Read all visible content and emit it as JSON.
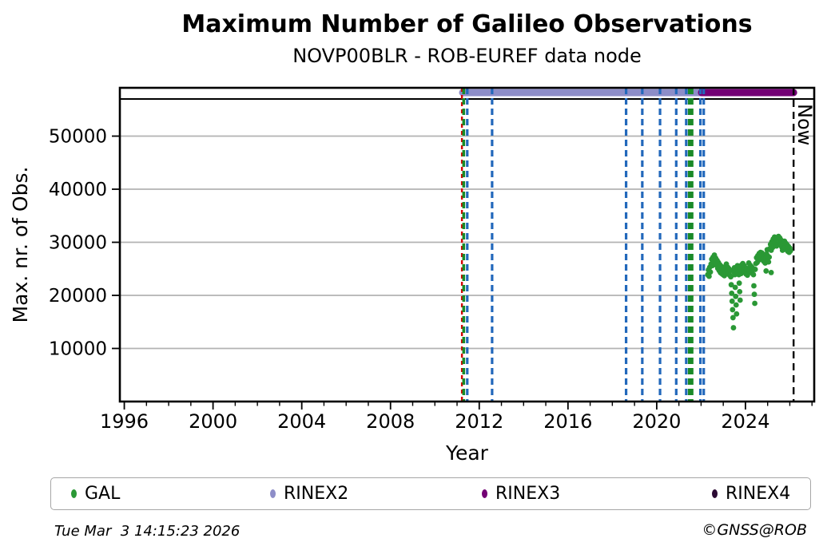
{
  "header": {
    "title": "Maximum Number of Galileo Observations",
    "subtitle": "NOVP00BLR - ROB-EUREF data node"
  },
  "footer": {
    "timestamp": "Tue Mar  3 14:15:23 2026",
    "credit": "©GNSS@ROB"
  },
  "legend": {
    "items": [
      {
        "label": "GAL",
        "color": "#2a9835"
      },
      {
        "label": "RINEX2",
        "color": "#8d8dc8"
      },
      {
        "label": "RINEX3",
        "color": "#730074"
      },
      {
        "label": "RINEX4",
        "color": "#2b0a33"
      }
    ]
  },
  "chart_data": {
    "type": "scatter",
    "title": "Maximum Number of Galileo Observations",
    "subtitle": "NOVP00BLR - ROB-EUREF data node",
    "xlabel": "Year",
    "ylabel": "Max. nr. of Obs.",
    "xlim": [
      1995.8,
      2027.1
    ],
    "ylim": [
      0,
      59100
    ],
    "xticks_major": [
      1996,
      2000,
      2004,
      2008,
      2012,
      2016,
      2020,
      2024
    ],
    "xtick_minor_step": 1,
    "yticks_major": [
      10000,
      20000,
      30000,
      40000,
      50000
    ],
    "grid": {
      "horizontal": true,
      "vertical": false,
      "color": "#b3b3b3"
    },
    "frame_color": "#000000",
    "reference_line": {
      "value": 57000,
      "color": "#000000"
    },
    "availability_bars": [
      {
        "name": "RINEX2",
        "start": 2011.25,
        "end": 2022.02,
        "y": 58200,
        "color": "#8d8dc8"
      },
      {
        "name": "RINEX3",
        "start": 2022.02,
        "end": 2026.17,
        "y": 58200,
        "color": "#730074"
      }
    ],
    "event_lines": [
      {
        "year": 2011.22,
        "color": "#d40000",
        "width": 2.4,
        "dash": "5 4"
      },
      {
        "year": 2011.3,
        "color": "#1a8a28",
        "width": 3.6,
        "dash": "8 5"
      },
      {
        "year": 2011.46,
        "color": "#2268bb",
        "width": 3.2,
        "dash": "8 5"
      },
      {
        "year": 2012.58,
        "color": "#2268bb",
        "width": 3.2,
        "dash": "8 5"
      },
      {
        "year": 2018.62,
        "color": "#2268bb",
        "width": 3.2,
        "dash": "8 5"
      },
      {
        "year": 2019.35,
        "color": "#2268bb",
        "width": 3.2,
        "dash": "8 5"
      },
      {
        "year": 2020.15,
        "color": "#2268bb",
        "width": 3.2,
        "dash": "8 5"
      },
      {
        "year": 2020.88,
        "color": "#2268bb",
        "width": 3.2,
        "dash": "8 5"
      },
      {
        "year": 2021.33,
        "color": "#2268bb",
        "width": 3.2,
        "dash": "8 5"
      },
      {
        "year": 2021.47,
        "color": "#1a8a28",
        "width": 3.6,
        "dash": "8 5"
      },
      {
        "year": 2021.59,
        "color": "#1a8a28",
        "width": 3.6,
        "dash": "8 5"
      },
      {
        "year": 2021.97,
        "color": "#2268bb",
        "width": 3.2,
        "dash": "8 5"
      },
      {
        "year": 2022.12,
        "color": "#2268bb",
        "width": 3.2,
        "dash": "8 5"
      }
    ],
    "now_line": {
      "year": 2026.17,
      "label": "Now",
      "color": "#000000",
      "width": 2.4,
      "dash": "9 6"
    },
    "series": [
      {
        "name": "GAL",
        "color": "#2a9835",
        "marker_radius": 3.4,
        "points": [
          [
            2022.3,
            23900
          ],
          [
            2022.33,
            24800
          ],
          [
            2022.36,
            23600
          ],
          [
            2022.39,
            25300
          ],
          [
            2022.42,
            24400
          ],
          [
            2022.45,
            25900
          ],
          [
            2022.48,
            26800
          ],
          [
            2022.51,
            25600
          ],
          [
            2022.54,
            27200
          ],
          [
            2022.57,
            26300
          ],
          [
            2022.6,
            27600
          ],
          [
            2022.63,
            26100
          ],
          [
            2022.66,
            27000
          ],
          [
            2022.69,
            25700
          ],
          [
            2022.72,
            26600
          ],
          [
            2022.75,
            25100
          ],
          [
            2022.78,
            26200
          ],
          [
            2022.81,
            24700
          ],
          [
            2022.84,
            25800
          ],
          [
            2022.87,
            24300
          ],
          [
            2022.9,
            25500
          ],
          [
            2022.93,
            24100
          ],
          [
            2022.96,
            25100
          ],
          [
            2022.99,
            23900
          ],
          [
            2023.02,
            24900
          ],
          [
            2023.05,
            23700
          ],
          [
            2023.08,
            25400
          ],
          [
            2023.11,
            24300
          ],
          [
            2023.14,
            25900
          ],
          [
            2023.17,
            24600
          ],
          [
            2023.2,
            25300
          ],
          [
            2023.23,
            24000
          ],
          [
            2023.26,
            25000
          ],
          [
            2023.29,
            23800
          ],
          [
            2023.32,
            24700
          ],
          [
            2023.34,
            23500
          ],
          [
            2023.36,
            22000
          ],
          [
            2023.38,
            20400
          ],
          [
            2023.4,
            18900
          ],
          [
            2023.42,
            17300
          ],
          [
            2023.44,
            15800
          ],
          [
            2023.46,
            13900
          ],
          [
            2023.48,
            24400
          ],
          [
            2023.5,
            25200
          ],
          [
            2023.52,
            23900
          ],
          [
            2023.54,
            21500
          ],
          [
            2023.56,
            19800
          ],
          [
            2023.58,
            18200
          ],
          [
            2023.6,
            16500
          ],
          [
            2023.62,
            24800
          ],
          [
            2023.64,
            25600
          ],
          [
            2023.66,
            24200
          ],
          [
            2023.68,
            25100
          ],
          [
            2023.7,
            23900
          ],
          [
            2023.72,
            22300
          ],
          [
            2023.74,
            20700
          ],
          [
            2023.76,
            19100
          ],
          [
            2023.78,
            25000
          ],
          [
            2023.8,
            24100
          ],
          [
            2023.82,
            25700
          ],
          [
            2023.85,
            24500
          ],
          [
            2023.88,
            26000
          ],
          [
            2023.91,
            24800
          ],
          [
            2023.94,
            25600
          ],
          [
            2023.97,
            24300
          ],
          [
            2024.0,
            25200
          ],
          [
            2024.03,
            24000
          ],
          [
            2024.06,
            25000
          ],
          [
            2024.09,
            23800
          ],
          [
            2024.12,
            24900
          ],
          [
            2024.15,
            26100
          ],
          [
            2024.18,
            24700
          ],
          [
            2024.21,
            25700
          ],
          [
            2024.24,
            24400
          ],
          [
            2024.27,
            25400
          ],
          [
            2024.3,
            24200
          ],
          [
            2024.33,
            25100
          ],
          [
            2024.36,
            23900
          ],
          [
            2024.38,
            21800
          ],
          [
            2024.4,
            20200
          ],
          [
            2024.42,
            18500
          ],
          [
            2024.44,
            24900
          ],
          [
            2024.47,
            26000
          ],
          [
            2024.5,
            27100
          ],
          [
            2024.53,
            26200
          ],
          [
            2024.56,
            27500
          ],
          [
            2024.59,
            26600
          ],
          [
            2024.62,
            27900
          ],
          [
            2024.65,
            26800
          ],
          [
            2024.68,
            28100
          ],
          [
            2024.71,
            27000
          ],
          [
            2024.74,
            28000
          ],
          [
            2024.77,
            26700
          ],
          [
            2024.8,
            27600
          ],
          [
            2024.83,
            26400
          ],
          [
            2024.86,
            27300
          ],
          [
            2024.89,
            26100
          ],
          [
            2024.92,
            27000
          ],
          [
            2024.93,
            24600
          ],
          [
            2024.95,
            27800
          ],
          [
            2024.98,
            28600
          ],
          [
            2025.01,
            27400
          ],
          [
            2025.04,
            26300
          ],
          [
            2025.07,
            27200
          ],
          [
            2025.1,
            28800
          ],
          [
            2025.13,
            29600
          ],
          [
            2025.16,
            24300
          ],
          [
            2025.16,
            28500
          ],
          [
            2025.19,
            30100
          ],
          [
            2025.22,
            29000
          ],
          [
            2025.25,
            30600
          ],
          [
            2025.28,
            29400
          ],
          [
            2025.31,
            31000
          ],
          [
            2025.34,
            29800
          ],
          [
            2025.37,
            30700
          ],
          [
            2025.4,
            29300
          ],
          [
            2025.43,
            30900
          ],
          [
            2025.46,
            29700
          ],
          [
            2025.49,
            31100
          ],
          [
            2025.52,
            30000
          ],
          [
            2025.55,
            30800
          ],
          [
            2025.58,
            29500
          ],
          [
            2025.61,
            30400
          ],
          [
            2025.64,
            29100
          ],
          [
            2025.67,
            28500
          ],
          [
            2025.7,
            29900
          ],
          [
            2025.73,
            28800
          ],
          [
            2025.76,
            30200
          ],
          [
            2025.79,
            29000
          ],
          [
            2025.82,
            29800
          ],
          [
            2025.85,
            28600
          ],
          [
            2025.88,
            29500
          ],
          [
            2025.91,
            28300
          ],
          [
            2025.94,
            29200
          ],
          [
            2025.97,
            28100
          ],
          [
            2026.0,
            28900
          ],
          [
            2026.03,
            28400
          ]
        ]
      }
    ]
  }
}
